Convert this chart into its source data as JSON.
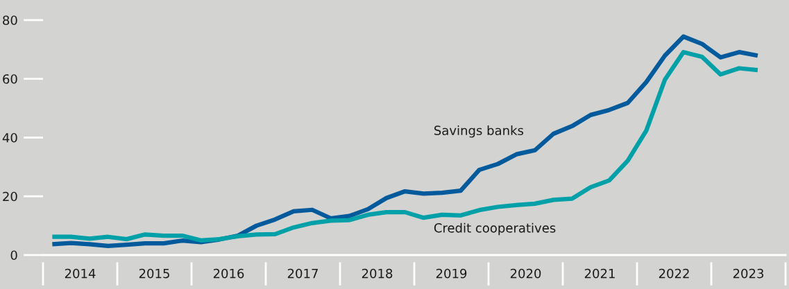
{
  "chart_data": {
    "type": "line",
    "x": [
      2014.125,
      2014.375,
      2014.625,
      2014.875,
      2015.125,
      2015.375,
      2015.625,
      2015.875,
      2016.125,
      2016.375,
      2016.625,
      2016.875,
      2017.125,
      2017.375,
      2017.625,
      2017.875,
      2018.125,
      2018.375,
      2018.625,
      2018.875,
      2019.125,
      2019.375,
      2019.625,
      2019.875,
      2020.125,
      2020.375,
      2020.625,
      2020.875,
      2021.125,
      2021.375,
      2021.625,
      2021.875,
      2022.125,
      2022.375,
      2022.625,
      2022.875,
      2023.125,
      2023.375,
      2023.625
    ],
    "series": [
      {
        "name": "Savings banks",
        "color": "#005a9c",
        "values": [
          3.7,
          4.1,
          3.7,
          3.1,
          3.5,
          4.0,
          4.0,
          4.9,
          4.4,
          5.3,
          6.6,
          10.0,
          12.1,
          14.9,
          15.4,
          12.5,
          13.3,
          15.6,
          19.4,
          21.7,
          20.9,
          21.2,
          21.9,
          29.0,
          31.0,
          34.3,
          35.7,
          41.3,
          43.9,
          47.7,
          49.4,
          51.8,
          58.9,
          67.9,
          74.4,
          71.9,
          67.3,
          69.1,
          67.9
        ]
      },
      {
        "name": "Credit cooperatives",
        "color": "#00a0a8",
        "values": [
          6.2,
          6.2,
          5.6,
          6.2,
          5.4,
          7.0,
          6.6,
          6.6,
          5.0,
          5.4,
          6.4,
          7.0,
          7.1,
          9.4,
          10.9,
          11.7,
          11.9,
          13.7,
          14.6,
          14.6,
          12.7,
          13.7,
          13.5,
          15.3,
          16.4,
          17.0,
          17.5,
          18.8,
          19.2,
          23.1,
          25.4,
          32.1,
          42.4,
          59.7,
          69.1,
          67.5,
          61.5,
          63.6,
          63.0
        ]
      }
    ],
    "xlim": [
      2014,
      2024
    ],
    "xticks": [
      {
        "value": 2014.5,
        "label": "2014"
      },
      {
        "value": 2015.5,
        "label": "2015"
      },
      {
        "value": 2016.5,
        "label": "2016"
      },
      {
        "value": 2017.5,
        "label": "2017"
      },
      {
        "value": 2018.5,
        "label": "2018"
      },
      {
        "value": 2019.5,
        "label": "2019"
      },
      {
        "value": 2020.5,
        "label": "2020"
      },
      {
        "value": 2021.5,
        "label": "2021"
      },
      {
        "value": 2022.5,
        "label": "2022"
      },
      {
        "value": 2023.5,
        "label": "2023"
      }
    ],
    "ylim": [
      0,
      80
    ],
    "yticks": [
      0,
      20,
      40,
      60,
      80
    ],
    "grid": false,
    "legend": false,
    "marker": "none",
    "line_style": "solid"
  }
}
